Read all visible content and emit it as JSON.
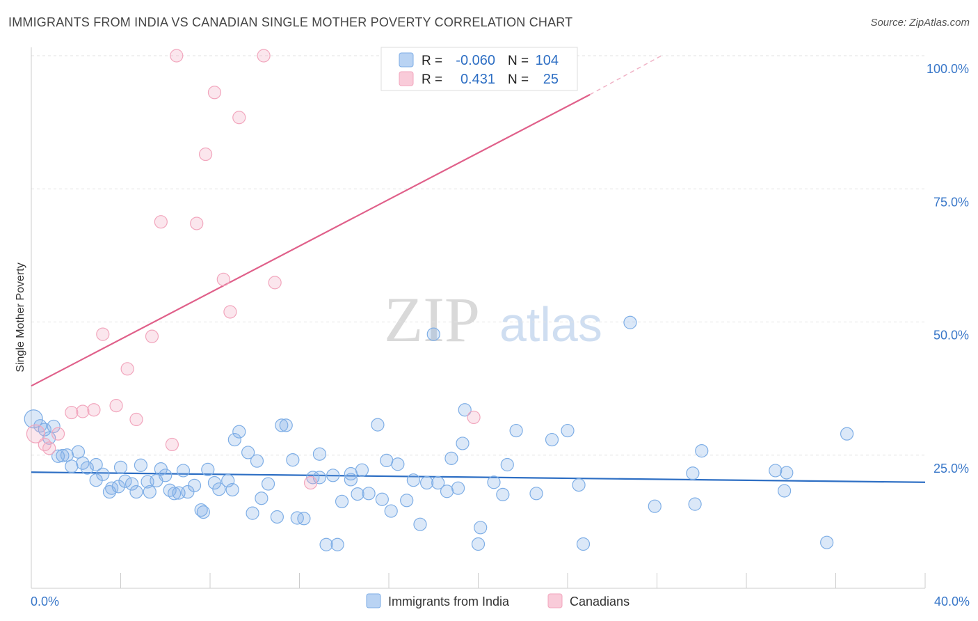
{
  "title": "IMMIGRANTS FROM INDIA VS CANADIAN SINGLE MOTHER POVERTY CORRELATION CHART",
  "source": "Source: ZipAtlas.com",
  "watermark": {
    "zip": "ZIP",
    "atlas": "atlas"
  },
  "colors": {
    "blue": "#7eaee6",
    "blue_line": "#2e6fc4",
    "pink": "#f2a6bd",
    "pink_line": "#e0608a",
    "tick": "#3a78c9"
  },
  "chart_data": {
    "type": "scatter",
    "title": "IMMIGRANTS FROM INDIA VS CANADIAN SINGLE MOTHER POVERTY CORRELATION CHART",
    "xlabel": "",
    "ylabel": "Single Mother Poverty",
    "xlim": [
      0,
      40
    ],
    "ylim": [
      0,
      100
    ],
    "x_tick_labels": [
      "0.0%",
      "40.0%"
    ],
    "y_ticks": [
      25,
      50,
      75,
      100
    ],
    "y_tick_labels": [
      "25.0%",
      "50.0%",
      "75.0%",
      "100.0%"
    ],
    "grid": true,
    "legend_top": [
      {
        "r_label": "R =",
        "r_value": "-0.060",
        "n_label": "N =",
        "n_value": "104"
      },
      {
        "r_label": "R =",
        "r_value": "0.431",
        "n_label": "N =",
        "n_value": "25"
      }
    ],
    "series": [
      {
        "name": "Immigrants from India",
        "color": "#7eaee6",
        "trend": {
          "x0": 0,
          "y0": 21.8,
          "x1": 40,
          "y1": 19.9
        },
        "points": [
          [
            0.1,
            31.8
          ],
          [
            0.4,
            30.5
          ],
          [
            0.6,
            29.8
          ],
          [
            0.8,
            28.2
          ],
          [
            1.0,
            30.4
          ],
          [
            1.2,
            24.8
          ],
          [
            1.4,
            24.9
          ],
          [
            1.6,
            25.0
          ],
          [
            1.8,
            22.9
          ],
          [
            2.1,
            25.6
          ],
          [
            2.3,
            23.5
          ],
          [
            2.5,
            22.6
          ],
          [
            2.9,
            23.2
          ],
          [
            2.9,
            20.3
          ],
          [
            3.2,
            21.4
          ],
          [
            3.5,
            18.1
          ],
          [
            3.6,
            18.8
          ],
          [
            3.9,
            19.1
          ],
          [
            4.0,
            22.7
          ],
          [
            4.2,
            20.1
          ],
          [
            4.5,
            19.6
          ],
          [
            4.7,
            18.1
          ],
          [
            4.9,
            23.1
          ],
          [
            5.2,
            20.0
          ],
          [
            5.3,
            18.1
          ],
          [
            5.6,
            20.2
          ],
          [
            5.8,
            22.4
          ],
          [
            6.0,
            21.2
          ],
          [
            6.2,
            18.4
          ],
          [
            6.4,
            17.8
          ],
          [
            6.6,
            17.9
          ],
          [
            6.8,
            22.1
          ],
          [
            7.0,
            18.1
          ],
          [
            7.3,
            19.3
          ],
          [
            7.6,
            14.7
          ],
          [
            7.7,
            14.3
          ],
          [
            7.9,
            22.3
          ],
          [
            8.2,
            19.8
          ],
          [
            8.4,
            18.6
          ],
          [
            8.8,
            20.2
          ],
          [
            9.0,
            18.5
          ],
          [
            9.1,
            27.9
          ],
          [
            9.3,
            29.4
          ],
          [
            9.7,
            25.5
          ],
          [
            9.9,
            14.1
          ],
          [
            10.1,
            23.9
          ],
          [
            10.3,
            16.9
          ],
          [
            10.6,
            19.6
          ],
          [
            11.0,
            13.4
          ],
          [
            11.2,
            30.6
          ],
          [
            11.4,
            30.6
          ],
          [
            11.7,
            24.1
          ],
          [
            11.9,
            13.2
          ],
          [
            12.2,
            13.1
          ],
          [
            12.6,
            20.8
          ],
          [
            12.9,
            20.8
          ],
          [
            12.9,
            25.2
          ],
          [
            13.2,
            8.2
          ],
          [
            13.5,
            21.2
          ],
          [
            13.7,
            8.2
          ],
          [
            13.9,
            16.3
          ],
          [
            14.3,
            21.5
          ],
          [
            14.3,
            20.4
          ],
          [
            14.6,
            17.7
          ],
          [
            14.8,
            22.2
          ],
          [
            15.1,
            17.8
          ],
          [
            15.5,
            30.7
          ],
          [
            15.7,
            16.7
          ],
          [
            15.9,
            24.0
          ],
          [
            16.1,
            14.5
          ],
          [
            16.4,
            23.3
          ],
          [
            16.8,
            16.5
          ],
          [
            17.1,
            20.3
          ],
          [
            17.4,
            12.0
          ],
          [
            17.7,
            19.8
          ],
          [
            18.0,
            47.7
          ],
          [
            18.2,
            19.8
          ],
          [
            18.6,
            18.2
          ],
          [
            18.8,
            24.4
          ],
          [
            19.1,
            18.8
          ],
          [
            19.3,
            27.2
          ],
          [
            19.4,
            33.5
          ],
          [
            20.0,
            8.3
          ],
          [
            20.1,
            11.4
          ],
          [
            20.7,
            19.9
          ],
          [
            21.1,
            17.6
          ],
          [
            21.3,
            23.2
          ],
          [
            21.7,
            29.6
          ],
          [
            22.6,
            17.8
          ],
          [
            23.3,
            27.9
          ],
          [
            24.0,
            29.6
          ],
          [
            24.5,
            19.4
          ],
          [
            24.7,
            8.3
          ],
          [
            26.8,
            49.9
          ],
          [
            27.9,
            15.4
          ],
          [
            29.6,
            21.6
          ],
          [
            29.7,
            15.8
          ],
          [
            30.0,
            25.8
          ],
          [
            33.3,
            22.1
          ],
          [
            33.7,
            18.3
          ],
          [
            33.8,
            21.7
          ],
          [
            35.6,
            8.6
          ],
          [
            36.5,
            29.0
          ]
        ]
      },
      {
        "name": "Canadians",
        "color": "#f2a6bd",
        "trend": {
          "x0": 0,
          "y0": 38.0,
          "x1": 25.0,
          "y1": 92.7,
          "dash_to": {
            "x": 28.2,
            "y": 100
          }
        },
        "points": [
          [
            0.2,
            29.0
          ],
          [
            0.6,
            27.0
          ],
          [
            0.8,
            26.3
          ],
          [
            1.2,
            29.0
          ],
          [
            1.8,
            33.0
          ],
          [
            2.3,
            33.2
          ],
          [
            2.8,
            33.5
          ],
          [
            3.2,
            47.7
          ],
          [
            3.8,
            34.3
          ],
          [
            4.3,
            41.2
          ],
          [
            4.7,
            31.7
          ],
          [
            5.4,
            47.3
          ],
          [
            5.8,
            68.8
          ],
          [
            6.3,
            27.0
          ],
          [
            6.5,
            100.0
          ],
          [
            7.4,
            68.5
          ],
          [
            7.8,
            81.5
          ],
          [
            8.2,
            93.1
          ],
          [
            8.6,
            58.0
          ],
          [
            8.9,
            51.9
          ],
          [
            9.3,
            88.4
          ],
          [
            10.4,
            100.0
          ],
          [
            10.9,
            57.4
          ],
          [
            12.5,
            19.8
          ],
          [
            19.8,
            32.1
          ]
        ]
      }
    ]
  }
}
